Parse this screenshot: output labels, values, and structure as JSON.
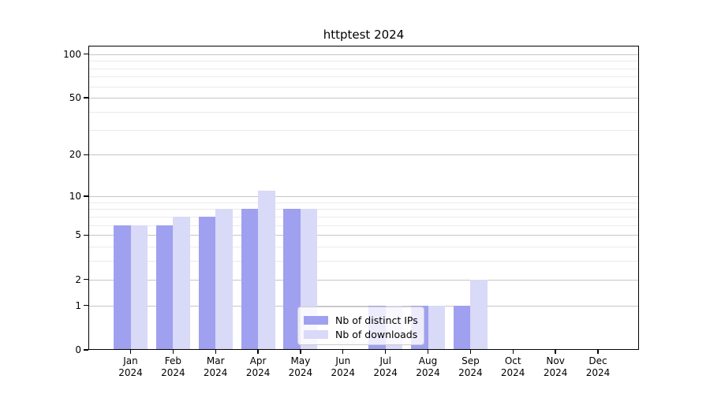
{
  "chart_data": {
    "type": "bar",
    "title": "httptest 2024",
    "x_axis": {
      "months": [
        "Jan",
        "Feb",
        "Mar",
        "Apr",
        "May",
        "Jun",
        "Jul",
        "Aug",
        "Sep",
        "Oct",
        "Nov",
        "Dec"
      ],
      "year": "2024"
    },
    "series": [
      {
        "name": "Nb of distinct IPs",
        "color": "#a0a0f0",
        "values": [
          6,
          6,
          7,
          8,
          8,
          0,
          1,
          1,
          1,
          0,
          0,
          0
        ]
      },
      {
        "name": "Nb of downloads",
        "color": "#d9d9f8",
        "values": [
          6,
          7,
          8,
          11,
          8,
          0,
          1,
          1,
          2,
          0,
          0,
          0
        ]
      }
    ],
    "y_axis": {
      "scale": "log1p",
      "major_ticks": [
        100,
        50,
        20,
        10,
        5,
        2,
        1,
        0
      ],
      "minor_ticks": [
        3,
        4,
        6,
        7,
        8,
        9,
        30,
        40,
        60,
        70,
        80,
        90
      ],
      "top_value": 114
    },
    "legend": {
      "entries": [
        "Nb of distinct IPs",
        "Nb of downloads"
      ],
      "position": "lower-center"
    },
    "grid": true,
    "colors": {
      "grid_major": "#c6c6c6",
      "grid_minor": "#eaeaea",
      "spine": "#000000",
      "text": "#000000",
      "background": "#ffffff"
    }
  }
}
